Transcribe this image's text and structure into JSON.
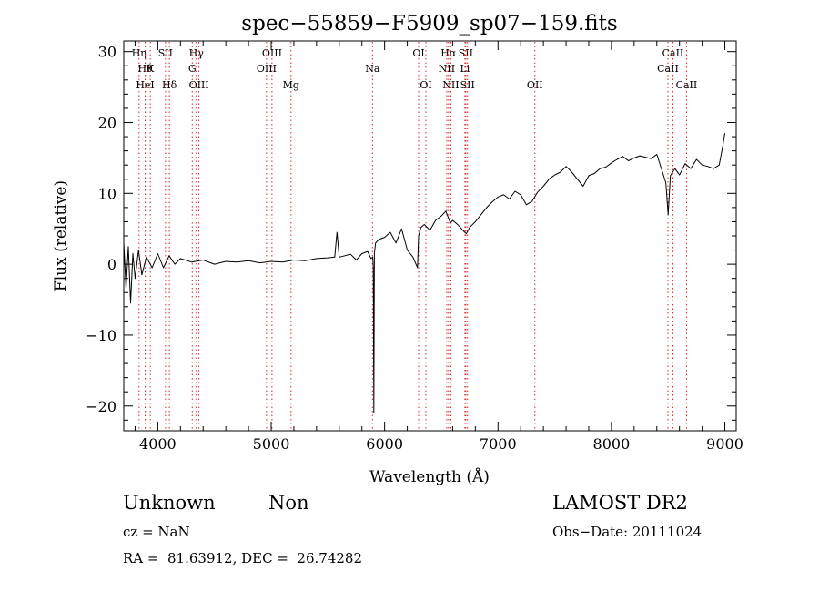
{
  "chart_data": {
    "type": "line",
    "title": "spec−55859−F5909_sp07−159.fits",
    "xlabel": "Wavelength (Å)",
    "ylabel": "Flux (relative)",
    "xlim": [
      3700,
      9100
    ],
    "ylim": [
      -23.5,
      31.5
    ],
    "xticks": [
      4000,
      5000,
      6000,
      7000,
      8000,
      9000
    ],
    "yticks": [
      30,
      20,
      10,
      0,
      -10,
      -20
    ],
    "ytick_labels": [
      "30",
      "20",
      "10",
      "0",
      "−10",
      "−20"
    ],
    "grid": false,
    "line_color": "#000000",
    "marker_color": "#d62728",
    "series": [
      {
        "x": [
          3700,
          3720,
          3740,
          3760,
          3780,
          3800,
          3830,
          3860,
          3900,
          3950,
          4000,
          4050,
          4100,
          4150,
          4200,
          4300,
          4400,
          4500,
          4600,
          4700,
          4800,
          4900,
          5000,
          5100,
          5200,
          5300,
          5400,
          5500,
          5560,
          5580,
          5600,
          5650,
          5700,
          5750,
          5800,
          5850,
          5880,
          5895,
          5900,
          5905,
          5910,
          5920,
          5950,
          6000,
          6050,
          6100,
          6150,
          6200,
          6250,
          6290,
          6300,
          6320,
          6350,
          6400,
          6450,
          6500,
          6540,
          6563,
          6580,
          6600,
          6650,
          6700,
          6720,
          6750,
          6800,
          6850,
          6900,
          6950,
          7000,
          7050,
          7100,
          7150,
          7200,
          7250,
          7300,
          7350,
          7400,
          7450,
          7500,
          7550,
          7600,
          7650,
          7700,
          7750,
          7800,
          7850,
          7900,
          7950,
          8000,
          8050,
          8100,
          8150,
          8200,
          8250,
          8300,
          8350,
          8400,
          8450,
          8480,
          8500,
          8520,
          8540,
          8560,
          8600,
          8650,
          8700,
          8750,
          8800,
          8850,
          8900,
          8950,
          8980,
          9000
        ],
        "y": [
          3.0,
          -3.5,
          2.5,
          -5.5,
          1.5,
          -2.0,
          2.0,
          -1.5,
          1.0,
          -0.5,
          1.5,
          -0.5,
          1.2,
          0.0,
          0.8,
          0.3,
          0.6,
          0.0,
          0.4,
          0.3,
          0.5,
          0.2,
          0.4,
          0.3,
          0.6,
          0.5,
          0.8,
          0.9,
          1.0,
          4.5,
          1.0,
          1.2,
          1.4,
          0.6,
          1.5,
          1.8,
          0.8,
          1.0,
          -0.5,
          -21.0,
          1.5,
          3.0,
          3.5,
          3.8,
          4.5,
          3.0,
          5.0,
          2.0,
          1.0,
          -0.5,
          4.0,
          5.2,
          5.6,
          4.8,
          6.2,
          6.8,
          7.5,
          6.5,
          5.8,
          6.2,
          5.5,
          4.6,
          4.3,
          5.2,
          6.0,
          7.0,
          8.0,
          8.8,
          9.5,
          9.8,
          9.2,
          10.3,
          9.8,
          8.4,
          8.9,
          10.2,
          11.0,
          12.0,
          12.6,
          13.0,
          13.8,
          13.0,
          12.0,
          11.0,
          12.5,
          12.8,
          13.5,
          13.7,
          14.3,
          14.8,
          15.2,
          14.6,
          15.0,
          15.3,
          15.1,
          14.9,
          15.5,
          13.0,
          11.5,
          7.0,
          12.5,
          13.0,
          13.5,
          12.6,
          14.2,
          13.5,
          14.8,
          14.0,
          13.8,
          13.5,
          14.0,
          16.5,
          18.5
        ]
      }
    ],
    "line_markers": [
      {
        "name": "Hη",
        "x": 3835,
        "row": 0
      },
      {
        "name": "Hθ",
        "x": 3889,
        "row": 1
      },
      {
        "name": "K",
        "x": 3934,
        "row": 1
      },
      {
        "name": "HeI",
        "x": 3889,
        "row": 2
      },
      {
        "name": "SII",
        "x": 4068,
        "row": 0
      },
      {
        "name": "Hδ",
        "x": 4102,
        "row": 2
      },
      {
        "name": "Hγ",
        "x": 4340,
        "row": 0
      },
      {
        "name": "G",
        "x": 4304,
        "row": 1
      },
      {
        "name": "OIII",
        "x": 4363,
        "row": 2
      },
      {
        "name": "OIII",
        "x": 5007,
        "row": 0
      },
      {
        "name": "OIII",
        "x": 4959,
        "row": 1
      },
      {
        "name": "Mg",
        "x": 5175,
        "row": 2
      },
      {
        "name": "Na",
        "x": 5893,
        "row": 1
      },
      {
        "name": "OI",
        "x": 6300,
        "row": 0
      },
      {
        "name": "OI",
        "x": 6364,
        "row": 2
      },
      {
        "name": "Hα",
        "x": 6563,
        "row": 0
      },
      {
        "name": "SII",
        "x": 6716,
        "row": 0
      },
      {
        "name": "NII",
        "x": 6548,
        "row": 1
      },
      {
        "name": "Li",
        "x": 6708,
        "row": 1
      },
      {
        "name": "NII",
        "x": 6584,
        "row": 2
      },
      {
        "name": "SII",
        "x": 6731,
        "row": 2
      },
      {
        "name": "OII",
        "x": 7325,
        "row": 2
      },
      {
        "name": "CaII",
        "x": 8542,
        "row": 0
      },
      {
        "name": "CaII",
        "x": 8498,
        "row": 1
      },
      {
        "name": "CaII",
        "x": 8662,
        "row": 2
      }
    ]
  },
  "info": {
    "classification": "Unknown",
    "subclass": "Non",
    "survey": "LAMOST DR2",
    "cz": "cz = NaN",
    "obs_date": "Obs−Date: 20111024",
    "coords": "RA =  81.63912, DEC =  26.74282"
  }
}
